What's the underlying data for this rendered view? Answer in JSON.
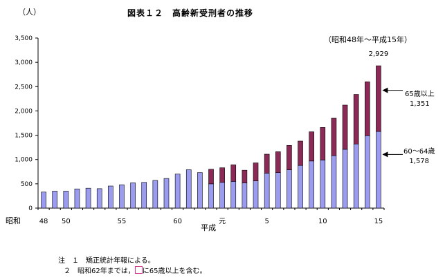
{
  "header": {
    "unit_label": "（人）",
    "title": "図表１２　高齢新受刑者の推移",
    "period": "（昭和48年～平成15年）"
  },
  "colors": {
    "age_60_64": "#9b9bf0",
    "age_65_plus": "#8b2a56",
    "legend_box": "#d63a8c"
  },
  "chart_data": {
    "type": "bar",
    "stacked": true,
    "title": "図表１２　高齢新受刑者の推移",
    "ylabel": "（人）",
    "ylim": [
      0,
      3500
    ],
    "yticks": [
      0,
      500,
      1000,
      1500,
      2000,
      2500,
      3000,
      3500
    ],
    "ytick_labels": [
      "0",
      "500",
      "1,000",
      "1,500",
      "2,000",
      "2,500",
      "3,000",
      "3,500"
    ],
    "grid": false,
    "categories": [
      "48",
      "49",
      "50",
      "51",
      "52",
      "53",
      "54",
      "55",
      "56",
      "57",
      "58",
      "59",
      "60",
      "61",
      "62",
      "63",
      "元",
      "2",
      "3",
      "4",
      "5",
      "6",
      "7",
      "8",
      "9",
      "10",
      "11",
      "12",
      "13",
      "14",
      "15"
    ],
    "x_tick_labels": [
      {
        "index": 0,
        "text": "48"
      },
      {
        "index": 2,
        "text": "50"
      },
      {
        "index": 7,
        "text": "55"
      },
      {
        "index": 12,
        "text": "60"
      },
      {
        "index": 16,
        "text": "元"
      },
      {
        "index": 20,
        "text": "5"
      },
      {
        "index": 25,
        "text": "10"
      },
      {
        "index": 30,
        "text": "15"
      }
    ],
    "era_labels": {
      "showa": "昭和",
      "heisei": "平成"
    },
    "series": [
      {
        "name": "60～64歳",
        "values": [
          330,
          350,
          350,
          395,
          410,
          400,
          455,
          480,
          520,
          530,
          570,
          610,
          700,
          790,
          730,
          500,
          530,
          550,
          520,
          560,
          720,
          730,
          790,
          880,
          970,
          990,
          1080,
          1210,
          1320,
          1490,
          1578
        ]
      },
      {
        "name": "65歳以上",
        "values": [
          0,
          0,
          0,
          0,
          0,
          0,
          0,
          0,
          0,
          0,
          0,
          0,
          0,
          0,
          0,
          300,
          300,
          340,
          260,
          370,
          390,
          430,
          500,
          500,
          600,
          670,
          770,
          910,
          1020,
          1110,
          1351
        ]
      }
    ],
    "annotations": [
      {
        "text": "2,929",
        "target_index": 30,
        "kind": "total"
      }
    ]
  },
  "annotations": {
    "age65_label": "65歳以上",
    "age65_value": "1,351",
    "age60_label": "60～64歳",
    "age60_value": "1,578"
  },
  "notes": {
    "line1": "注　１　矯正統計年報による。",
    "line2_before": "２　昭和62年までは，",
    "line2_after": "に65歳以上を含む。"
  }
}
